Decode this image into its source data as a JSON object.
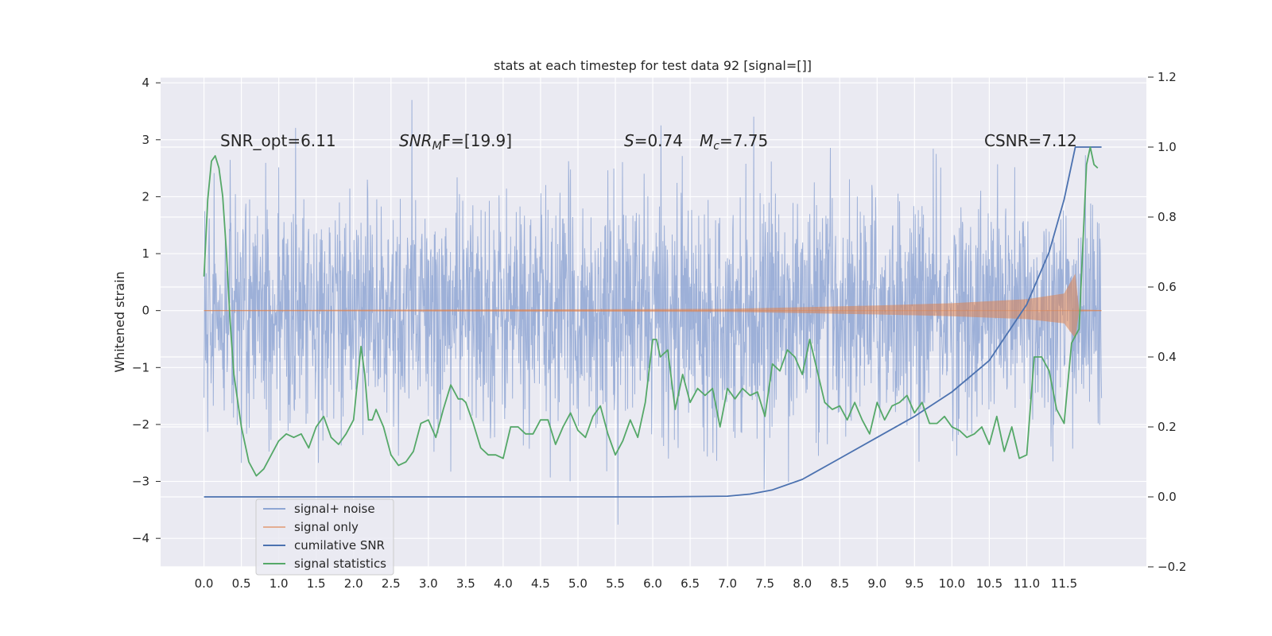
{
  "chart_data": {
    "type": "line",
    "title": "stats at each timestep for test data 92 [signal=[]]",
    "ylabel": "Whitened strain",
    "xlabel": "",
    "x_ticks": [
      "0.0",
      "0.5",
      "1.0",
      "1.5",
      "2.0",
      "2.5",
      "3.0",
      "3.5",
      "4.0",
      "4.5",
      "5.0",
      "5.5",
      "6.0",
      "6.5",
      "7.0",
      "7.5",
      "8.0",
      "8.5",
      "9.0",
      "9.5",
      "10.0",
      "10.5",
      "11.0",
      "11.5"
    ],
    "xlim": [
      -0.58,
      12.6
    ],
    "ylim_left": [
      -4.5,
      4.1
    ],
    "ylim_right": [
      -0.2,
      1.2
    ],
    "y_ticks_left": [
      "4",
      "3",
      "2",
      "1",
      "0",
      "−1",
      "−2",
      "−3",
      "−4"
    ],
    "y_ticks_right": [
      "1.2",
      "1.0",
      "0.8",
      "0.6",
      "0.4",
      "0.2",
      "0.0",
      "−0.2"
    ],
    "grid": true,
    "legend_position": "lower-left",
    "annotations": {
      "snr_opt": "SNR_opt=6.11",
      "snr_mf_main": "SNR",
      "snr_mf_sub": "M",
      "snr_mf_rest": "F=[19.9]",
      "s_italic": "S",
      "s_rest": "=0.74",
      "mc_italic": "M",
      "mc_sub": "c",
      "mc_rest": "=7.75",
      "csnr": "CSNR=7.12"
    },
    "series": [
      {
        "name": "signal+ noise",
        "color": "#8fa6d4",
        "axis": "left",
        "description_values": {
          "x_range": [
            0.0,
            12.0
          ],
          "typical_range": [
            -2.2,
            2.3
          ],
          "extremes": [
            -4.1,
            3.7
          ]
        }
      },
      {
        "name": "signal only",
        "color": "#dd8452",
        "axis": "left",
        "envelope": {
          "x": [
            0.0,
            7.0,
            8.0,
            9.0,
            10.0,
            11.0,
            11.5,
            11.65,
            11.7,
            12.0
          ],
          "amplitude": [
            0.01,
            0.03,
            0.06,
            0.09,
            0.13,
            0.2,
            0.3,
            0.65,
            0.02,
            0.01
          ]
        }
      },
      {
        "name": "cumilative SNR",
        "color": "#4c72b0",
        "axis": "right",
        "x": [
          0.0,
          6.0,
          7.0,
          7.3,
          7.6,
          8.0,
          8.5,
          9.0,
          9.5,
          10.0,
          10.5,
          11.0,
          11.3,
          11.5,
          11.65,
          12.0
        ],
        "y": [
          0.0,
          0.0,
          0.002,
          0.008,
          0.02,
          0.05,
          0.11,
          0.17,
          0.23,
          0.3,
          0.39,
          0.55,
          0.7,
          0.85,
          1.0,
          1.0
        ]
      },
      {
        "name": "signal statistics",
        "color": "#55a868",
        "axis": "right",
        "x": [
          0.0,
          0.05,
          0.1,
          0.15,
          0.2,
          0.25,
          0.3,
          0.35,
          0.4,
          0.5,
          0.6,
          0.7,
          0.8,
          0.9,
          1.0,
          1.1,
          1.2,
          1.3,
          1.4,
          1.5,
          1.6,
          1.7,
          1.8,
          1.9,
          2.0,
          2.1,
          2.15,
          2.2,
          2.25,
          2.3,
          2.4,
          2.5,
          2.6,
          2.7,
          2.8,
          2.9,
          3.0,
          3.1,
          3.2,
          3.3,
          3.4,
          3.45,
          3.5,
          3.6,
          3.7,
          3.8,
          3.9,
          4.0,
          4.1,
          4.2,
          4.3,
          4.4,
          4.5,
          4.6,
          4.7,
          4.8,
          4.9,
          5.0,
          5.1,
          5.2,
          5.3,
          5.4,
          5.5,
          5.6,
          5.7,
          5.8,
          5.9,
          6.0,
          6.05,
          6.1,
          6.15,
          6.2,
          6.3,
          6.4,
          6.5,
          6.6,
          6.7,
          6.8,
          6.9,
          7.0,
          7.1,
          7.2,
          7.3,
          7.4,
          7.5,
          7.6,
          7.7,
          7.8,
          7.9,
          8.0,
          8.1,
          8.2,
          8.3,
          8.4,
          8.5,
          8.6,
          8.7,
          8.8,
          8.9,
          9.0,
          9.1,
          9.2,
          9.3,
          9.4,
          9.5,
          9.6,
          9.7,
          9.8,
          9.9,
          10.0,
          10.1,
          10.2,
          10.3,
          10.4,
          10.5,
          10.6,
          10.7,
          10.8,
          10.9,
          11.0,
          11.1,
          11.2,
          11.3,
          11.4,
          11.5,
          11.6,
          11.7,
          11.8,
          11.85,
          11.9,
          11.95
        ],
        "y": [
          0.63,
          0.85,
          0.96,
          0.975,
          0.94,
          0.86,
          0.7,
          0.5,
          0.35,
          0.2,
          0.1,
          0.06,
          0.08,
          0.12,
          0.16,
          0.18,
          0.17,
          0.18,
          0.14,
          0.2,
          0.23,
          0.17,
          0.15,
          0.18,
          0.22,
          0.43,
          0.35,
          0.22,
          0.22,
          0.25,
          0.2,
          0.12,
          0.09,
          0.1,
          0.13,
          0.21,
          0.22,
          0.17,
          0.25,
          0.32,
          0.28,
          0.28,
          0.27,
          0.21,
          0.14,
          0.12,
          0.12,
          0.11,
          0.2,
          0.2,
          0.18,
          0.18,
          0.22,
          0.22,
          0.15,
          0.2,
          0.24,
          0.19,
          0.17,
          0.23,
          0.26,
          0.18,
          0.12,
          0.16,
          0.22,
          0.17,
          0.27,
          0.45,
          0.45,
          0.4,
          0.41,
          0.42,
          0.25,
          0.35,
          0.27,
          0.31,
          0.29,
          0.31,
          0.2,
          0.31,
          0.28,
          0.31,
          0.29,
          0.3,
          0.23,
          0.38,
          0.36,
          0.42,
          0.4,
          0.35,
          0.45,
          0.36,
          0.27,
          0.25,
          0.26,
          0.22,
          0.27,
          0.22,
          0.18,
          0.27,
          0.22,
          0.26,
          0.27,
          0.29,
          0.24,
          0.27,
          0.21,
          0.21,
          0.23,
          0.2,
          0.19,
          0.17,
          0.18,
          0.2,
          0.15,
          0.23,
          0.13,
          0.2,
          0.11,
          0.12,
          0.4,
          0.4,
          0.36,
          0.25,
          0.21,
          0.44,
          0.48,
          0.95,
          1.0,
          0.95,
          0.94
        ]
      }
    ]
  },
  "legend": [
    "signal+ noise",
    "signal only",
    "cumilative SNR",
    "signal statistics"
  ]
}
